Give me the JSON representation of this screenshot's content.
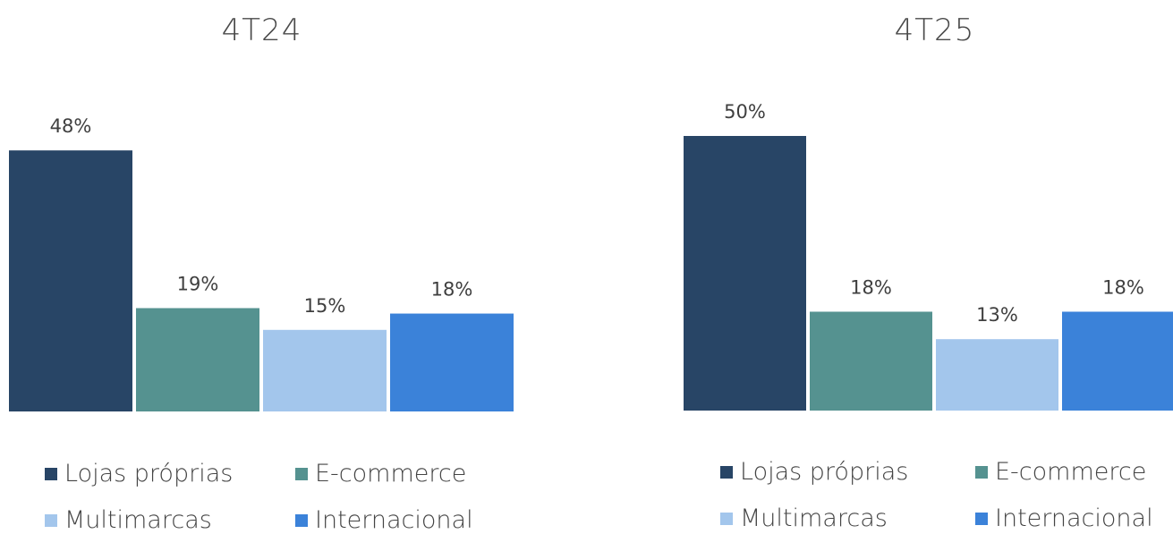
{
  "chart_data": [
    {
      "type": "bar",
      "title": "4T24",
      "categories": [
        "Lojas próprias",
        "E-commerce",
        "Multimarcas",
        "Internacional"
      ],
      "values": [
        48,
        19,
        15,
        18
      ],
      "value_labels": [
        "48%",
        "19%",
        "15%",
        "18%"
      ],
      "unit": "%",
      "legend": [
        "Lojas próprias",
        "E-commerce",
        "Multimarcas",
        "Internacional"
      ],
      "legend_placement": "bottom",
      "grid": false
    },
    {
      "type": "bar",
      "title": "4T25",
      "categories": [
        "Lojas próprias",
        "E-commerce",
        "Multimarcas",
        "Internacional"
      ],
      "values": [
        50,
        18,
        13,
        18
      ],
      "value_labels": [
        "50%",
        "18%",
        "13%",
        "18%"
      ],
      "unit": "%",
      "legend": [
        "Lojas próprias",
        "E-commerce",
        "Multimarcas",
        "Internacional"
      ],
      "legend_placement": "bottom",
      "grid": false
    }
  ],
  "colors": {
    "Lojas próprias": "#284566",
    "E-commerce": "#559290",
    "Multimarcas": "#a3c6ec",
    "Internacional": "#3b82d9"
  }
}
